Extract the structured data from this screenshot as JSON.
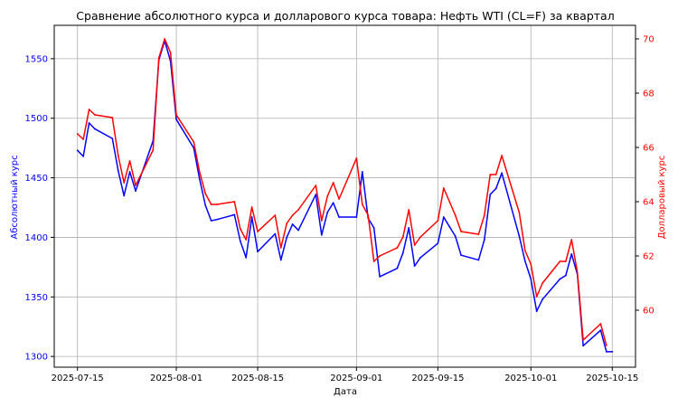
{
  "chart_data": {
    "type": "line",
    "title": "Сравнение абсолютного курса и долларового курса товара: Нефть WTI (CL=F) за квартал",
    "xlabel": "Дата",
    "ylabel_left": "Абсолютный курс",
    "ylabel_right": "Долларовый курс",
    "grid": true,
    "x_ticks": [
      "2025-07-15",
      "2025-08-01",
      "2025-08-15",
      "2025-09-01",
      "2025-09-15",
      "2025-10-01",
      "2025-10-15"
    ],
    "y_left_ticks": [
      1300,
      1350,
      1400,
      1450,
      1500,
      1550
    ],
    "y_right_ticks": [
      60,
      62,
      64,
      66,
      68,
      70
    ],
    "y_left_lim": [
      1291,
      1578
    ],
    "y_right_lim": [
      57.9,
      70.5
    ],
    "x_lim": [
      "2025-07-11",
      "2025-10-19"
    ],
    "series": [
      {
        "axis": "left",
        "color": "#0000ff",
        "x": [
          "2025-07-15",
          "2025-07-16",
          "2025-07-17",
          "2025-07-18",
          "2025-07-21",
          "2025-07-22",
          "2025-07-23",
          "2025-07-24",
          "2025-07-25",
          "2025-07-28",
          "2025-07-29",
          "2025-07-30",
          "2025-07-31",
          "2025-08-01",
          "2025-08-04",
          "2025-08-05",
          "2025-08-06",
          "2025-08-07",
          "2025-08-08",
          "2025-08-11",
          "2025-08-12",
          "2025-08-13",
          "2025-08-14",
          "2025-08-15",
          "2025-08-18",
          "2025-08-19",
          "2025-08-20",
          "2025-08-21",
          "2025-08-22",
          "2025-08-25",
          "2025-08-26",
          "2025-08-27",
          "2025-08-28",
          "2025-08-29",
          "2025-09-01",
          "2025-09-02",
          "2025-09-03",
          "2025-09-04",
          "2025-09-05",
          "2025-09-08",
          "2025-09-09",
          "2025-09-10",
          "2025-09-11",
          "2025-09-12",
          "2025-09-15",
          "2025-09-16",
          "2025-09-17",
          "2025-09-18",
          "2025-09-19",
          "2025-09-22",
          "2025-09-23",
          "2025-09-24",
          "2025-09-25",
          "2025-09-26",
          "2025-09-29",
          "2025-09-30",
          "2025-10-01",
          "2025-10-02",
          "2025-10-03",
          "2025-10-06",
          "2025-10-07",
          "2025-10-08",
          "2025-10-09",
          "2025-10-10",
          "2025-10-13",
          "2025-10-14",
          "2025-10-15"
        ],
        "values": [
          1473,
          1468,
          1496,
          1491,
          1483,
          1456,
          1435,
          1455,
          1439,
          1481,
          1549,
          1565,
          1548,
          1499,
          1475,
          1449,
          1427,
          1414,
          1415,
          1419,
          1397,
          1383,
          1417,
          1388,
          1403,
          1381,
          1400,
          1411,
          1406,
          1436,
          1402,
          1421,
          1429,
          1417,
          1417,
          1455,
          1416,
          1408,
          1367,
          1374,
          1387,
          1408,
          1376,
          1383,
          1395,
          1417,
          1409,
          1401,
          1385,
          1381,
          1398,
          1436,
          1441,
          1454,
          1401,
          1380,
          1365,
          1338,
          1348,
          1365,
          1368,
          1386,
          1369,
          1309,
          1322,
          1304,
          1304
        ]
      },
      {
        "axis": "right",
        "color": "#ff0000",
        "x": [
          "2025-07-15",
          "2025-07-16",
          "2025-07-17",
          "2025-07-18",
          "2025-07-21",
          "2025-07-22",
          "2025-07-23",
          "2025-07-24",
          "2025-07-25",
          "2025-07-28",
          "2025-07-29",
          "2025-07-30",
          "2025-07-31",
          "2025-08-01",
          "2025-08-04",
          "2025-08-05",
          "2025-08-06",
          "2025-08-07",
          "2025-08-08",
          "2025-08-11",
          "2025-08-12",
          "2025-08-13",
          "2025-08-14",
          "2025-08-15",
          "2025-08-18",
          "2025-08-19",
          "2025-08-20",
          "2025-08-21",
          "2025-08-22",
          "2025-08-25",
          "2025-08-26",
          "2025-08-27",
          "2025-08-28",
          "2025-08-29",
          "2025-09-01",
          "2025-09-02",
          "2025-09-03",
          "2025-09-04",
          "2025-09-05",
          "2025-09-08",
          "2025-09-09",
          "2025-09-10",
          "2025-09-11",
          "2025-09-12",
          "2025-09-15",
          "2025-09-16",
          "2025-09-17",
          "2025-09-18",
          "2025-09-19",
          "2025-09-22",
          "2025-09-23",
          "2025-09-24",
          "2025-09-25",
          "2025-09-26",
          "2025-09-29",
          "2025-09-30",
          "2025-10-01",
          "2025-10-02",
          "2025-10-03",
          "2025-10-06",
          "2025-10-07",
          "2025-10-08",
          "2025-10-09",
          "2025-10-10",
          "2025-10-13",
          "2025-10-14"
        ],
        "values": [
          66.5,
          66.3,
          67.4,
          67.2,
          67.1,
          65.7,
          64.7,
          65.5,
          64.6,
          65.9,
          69.3,
          70.0,
          69.5,
          67.2,
          66.2,
          65.1,
          64.3,
          63.9,
          63.9,
          64.0,
          63.0,
          62.6,
          63.8,
          62.9,
          63.5,
          62.3,
          63.2,
          63.5,
          63.7,
          64.6,
          63.3,
          64.2,
          64.7,
          64.1,
          65.6,
          63.9,
          63.5,
          61.8,
          62.0,
          62.3,
          62.7,
          63.7,
          62.4,
          62.7,
          63.3,
          64.5,
          64.0,
          63.5,
          62.9,
          62.8,
          63.5,
          65.0,
          65.0,
          65.7,
          63.6,
          62.2,
          61.7,
          60.5,
          61.0,
          61.8,
          61.8,
          62.6,
          61.4,
          58.9,
          59.5,
          58.7
        ]
      }
    ]
  }
}
